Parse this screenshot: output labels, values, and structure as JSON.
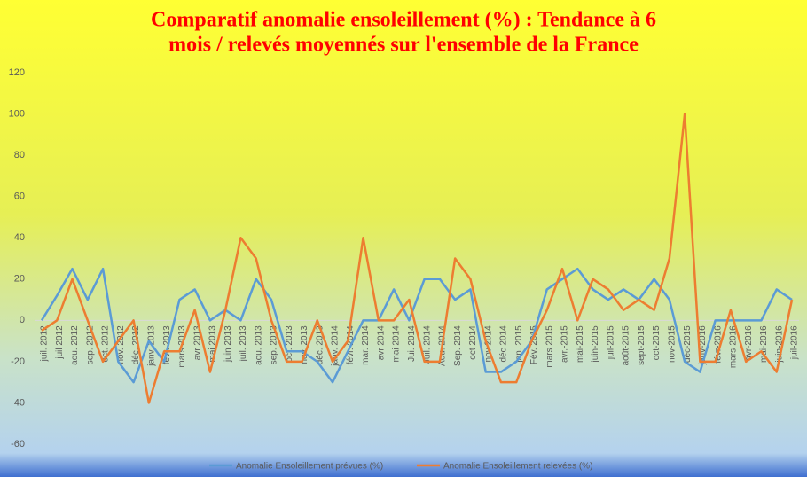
{
  "chart_data": {
    "type": "line",
    "title": [
      "Comparatif anomalie ensoleillement (%) : Tendance à 6",
      "mois / relevés moyennés sur l'ensemble de la France"
    ],
    "categories": [
      "juil. 2012",
      "juil 2012",
      "aou. 2012",
      "sep. 2012",
      "oct. 2012",
      "nov. 2012",
      "déc. 2012",
      "janv. 2013",
      "févr. 2013",
      "mars 2013",
      "avr 2013",
      "mai 2013",
      "juin 2013",
      "juil. 2013",
      "aou. 2013",
      "sep. 2013",
      "oct. 2013",
      "nov. 2013",
      "déc. 2013",
      "janv. 2014",
      "févr. 2014",
      "mar. 2014",
      "avr 2014",
      "mai 2014",
      "Jui. 2014",
      "Juil. 2014",
      "Aou. 2014",
      "Sep. 2014",
      "oct 2014",
      "nov 2014",
      "déc 2014",
      "jan. 2015",
      "Fév. 2015",
      "mars 2015",
      "avr.-2015",
      "mai-2015",
      "juin-2015",
      "juil-2015",
      "août-2015",
      "sept-2015",
      "oct-2015",
      "nov-2015",
      "déc-2015",
      "janv-2016",
      "févr-2016",
      "mars-2016",
      "avr-2016",
      "mai-2016",
      "juin-2016",
      "juil-2016"
    ],
    "series": [
      {
        "name": "Anomalie Ensoleillement prévues (%)",
        "color": "#5b9bd5",
        "values": [
          0,
          12,
          25,
          10,
          25,
          -20,
          -30,
          -10,
          -20,
          10,
          15,
          0,
          5,
          0,
          20,
          10,
          -15,
          -15,
          -20,
          -30,
          -15,
          0,
          0,
          15,
          0,
          20,
          20,
          10,
          15,
          -25,
          -25,
          -20,
          -10,
          15,
          20,
          25,
          15,
          10,
          15,
          10,
          20,
          10,
          -20,
          -25,
          0,
          0,
          0,
          0,
          15,
          10
        ]
      },
      {
        "name": "Anomalie Ensoleillement relevées (%)",
        "color": "#ed7d31",
        "values": [
          -5,
          0,
          20,
          0,
          -20,
          -10,
          0,
          -40,
          -15,
          -15,
          5,
          -25,
          5,
          40,
          30,
          0,
          -20,
          -20,
          0,
          -20,
          -10,
          40,
          0,
          0,
          10,
          -20,
          -20,
          30,
          20,
          -10,
          -30,
          -30,
          -10,
          5,
          25,
          0,
          20,
          15,
          5,
          10,
          5,
          30,
          100,
          -20,
          -20,
          5,
          -20,
          -15,
          -25,
          10
        ]
      }
    ],
    "ylim": [
      -60,
      120
    ],
    "yticks": [
      -60,
      -40,
      -20,
      0,
      20,
      40,
      60,
      80,
      100,
      120
    ],
    "legend": "bottom"
  }
}
